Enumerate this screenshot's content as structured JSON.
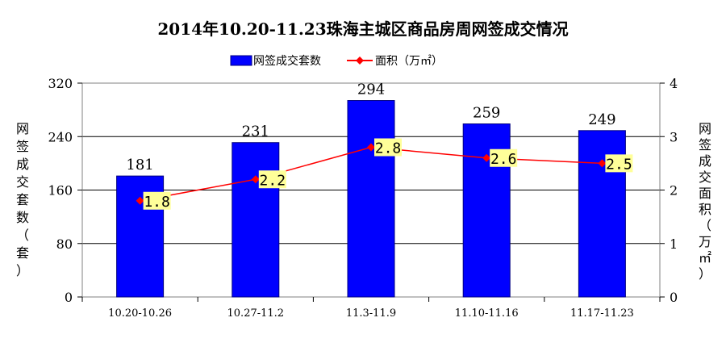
{
  "chart_data": {
    "type": "bar",
    "title": "2014年10.20-11.23珠海主城区商品房周网签成交情况",
    "categories": [
      "10.20-10.26",
      "10.27-11.2",
      "11.3-11.9",
      "11.10-11.16",
      "11.17-11.23"
    ],
    "series": [
      {
        "name": "网签成交套数",
        "type": "bar",
        "axis": "left",
        "values": [
          181,
          231,
          294,
          259,
          249
        ],
        "color": "#0000ff"
      },
      {
        "name": "面积（万㎡）",
        "type": "line",
        "axis": "right",
        "values": [
          1.8,
          2.2,
          2.8,
          2.6,
          2.5
        ],
        "labels": [
          "1.8",
          "2.2",
          "2.8",
          "2.6",
          "2.5"
        ],
        "color": "#ff0000"
      }
    ],
    "ylabel_left": "网签成交套数（套）",
    "ylabel_right": "网签成交面积（万㎡）",
    "ylim_left": [
      0,
      320
    ],
    "yticks_left": [
      0,
      80,
      160,
      240,
      320
    ],
    "ylim_right": [
      0,
      4
    ],
    "yticks_right": [
      0,
      1,
      2,
      3,
      4
    ],
    "grid": true,
    "legend_position": "top-center",
    "label_box_color": "#ffff99"
  }
}
